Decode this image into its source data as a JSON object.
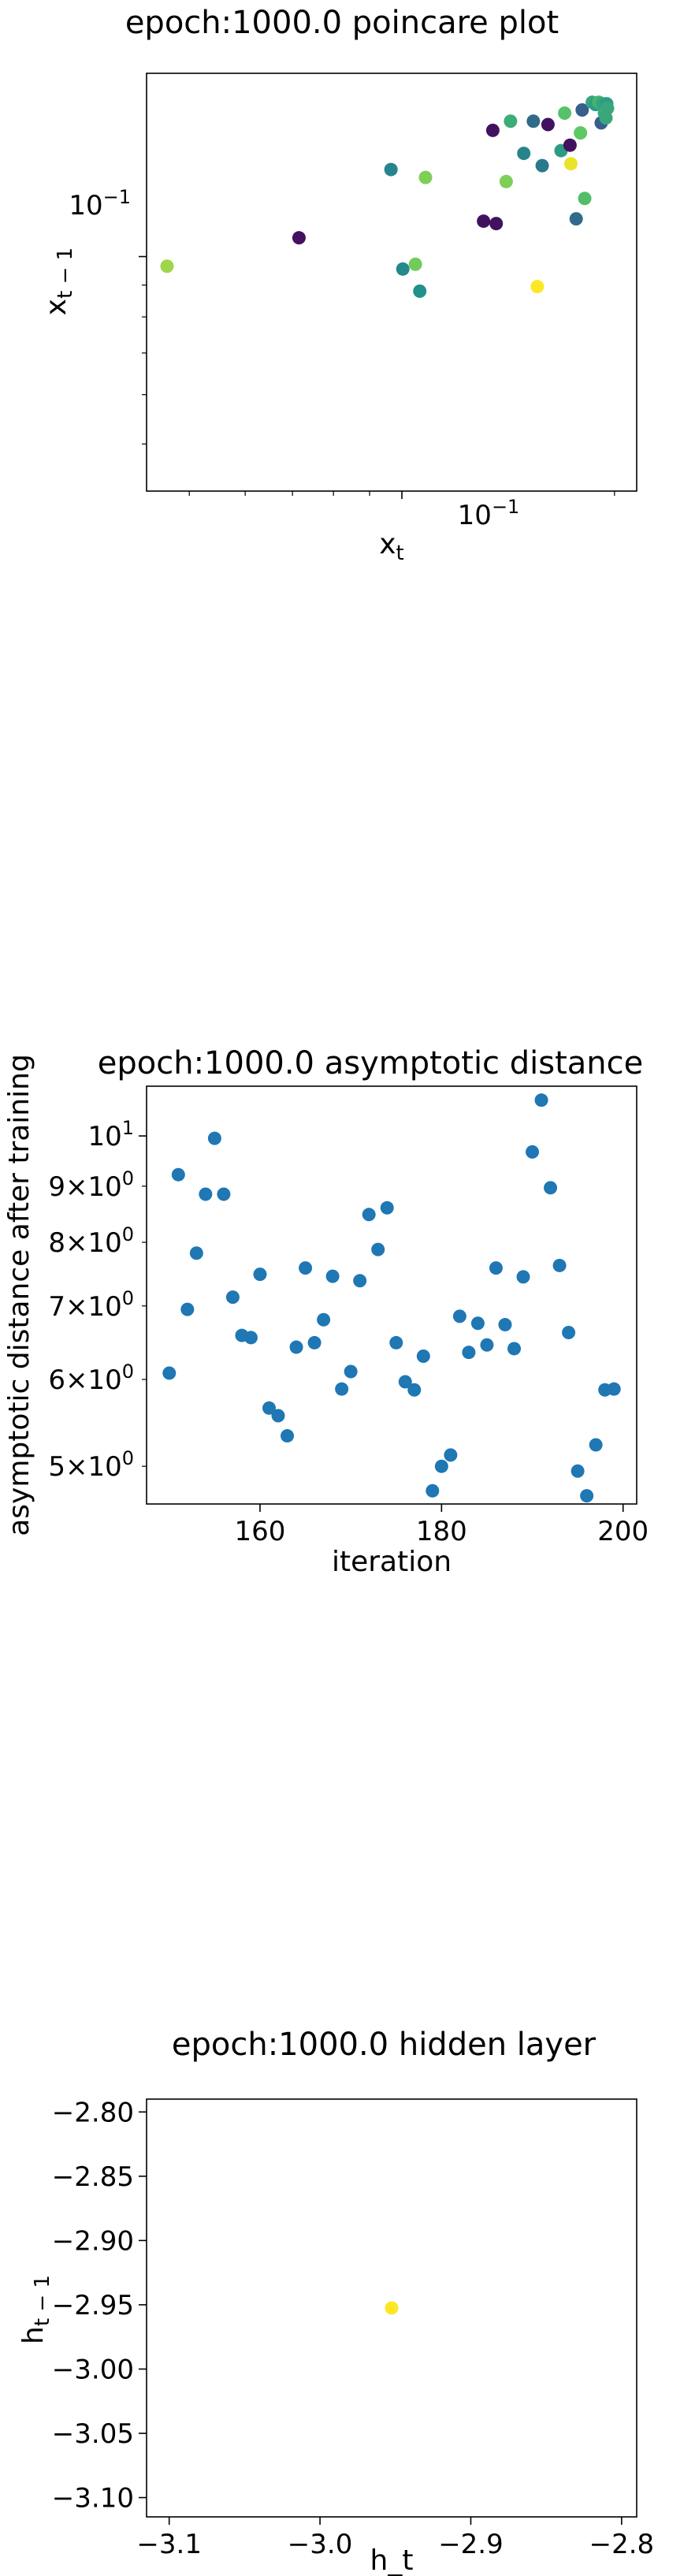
{
  "chart_data": [
    {
      "type": "scatter",
      "title": "epoch:1000.0 poincare plot",
      "xlabel": "x_t",
      "ylabel": "x_{t-1}",
      "xscale": "log",
      "yscale": "log",
      "xlim": [
        0.0435,
        0.215
      ],
      "ylim": [
        0.042,
        0.197
      ],
      "x_tick_labels": [
        "10^{-1}"
      ],
      "y_tick_labels": [
        "10^{-1}"
      ],
      "grid": false,
      "colormap": "viridis",
      "points": [
        {
          "x": 0.0465,
          "y": 0.0965,
          "c": 0.85
        },
        {
          "x": 0.0715,
          "y": 0.1072,
          "c": 0.05
        },
        {
          "x": 0.0965,
          "y": 0.138,
          "c": 0.45
        },
        {
          "x": 0.1003,
          "y": 0.0955,
          "c": 0.47
        },
        {
          "x": 0.1045,
          "y": 0.0972,
          "c": 0.78
        },
        {
          "x": 0.106,
          "y": 0.088,
          "c": 0.5
        },
        {
          "x": 0.108,
          "y": 0.134,
          "c": 0.8
        },
        {
          "x": 0.1305,
          "y": 0.114,
          "c": 0.05
        },
        {
          "x": 0.1345,
          "y": 0.1595,
          "c": 0.05
        },
        {
          "x": 0.136,
          "y": 0.113,
          "c": 0.05
        },
        {
          "x": 0.1405,
          "y": 0.132,
          "c": 0.8
        },
        {
          "x": 0.1425,
          "y": 0.165,
          "c": 0.62
        },
        {
          "x": 0.1488,
          "y": 0.1465,
          "c": 0.45
        },
        {
          "x": 0.1535,
          "y": 0.165,
          "c": 0.35
        },
        {
          "x": 0.1555,
          "y": 0.0895,
          "c": 1.0
        },
        {
          "x": 0.158,
          "y": 0.14,
          "c": 0.4
        },
        {
          "x": 0.161,
          "y": 0.163,
          "c": 0.05
        },
        {
          "x": 0.168,
          "y": 0.148,
          "c": 0.55
        },
        {
          "x": 0.17,
          "y": 0.17,
          "c": 0.72
        },
        {
          "x": 0.173,
          "y": 0.151,
          "c": 0.05
        },
        {
          "x": 0.1735,
          "y": 0.141,
          "c": 0.97
        },
        {
          "x": 0.1765,
          "y": 0.115,
          "c": 0.35
        },
        {
          "x": 0.179,
          "y": 0.158,
          "c": 0.75
        },
        {
          "x": 0.18,
          "y": 0.172,
          "c": 0.3
        },
        {
          "x": 0.1815,
          "y": 0.124,
          "c": 0.7
        },
        {
          "x": 0.186,
          "y": 0.177,
          "c": 0.6
        },
        {
          "x": 0.188,
          "y": 0.1755,
          "c": 0.55
        },
        {
          "x": 0.19,
          "y": 0.177,
          "c": 0.65
        },
        {
          "x": 0.1915,
          "y": 0.164,
          "c": 0.3
        },
        {
          "x": 0.1925,
          "y": 0.176,
          "c": 0.58
        },
        {
          "x": 0.1935,
          "y": 0.17,
          "c": 0.62
        },
        {
          "x": 0.1945,
          "y": 0.167,
          "c": 0.6
        },
        {
          "x": 0.195,
          "y": 0.176,
          "c": 0.55
        },
        {
          "x": 0.1955,
          "y": 0.173,
          "c": 0.6
        }
      ]
    },
    {
      "type": "scatter",
      "title": "epoch:1000.0 asymptotic distance",
      "xlabel": "iteration",
      "ylabel": "asymptotic distance after training",
      "xscale": "linear",
      "yscale": "log",
      "xlim": [
        147.5,
        201.5
      ],
      "ylim": [
        4.62,
        11.1
      ],
      "x_ticks": [
        160,
        180,
        200
      ],
      "y_tick_labels": [
        "5×10^0",
        "6×10^0",
        "7×10^0",
        "8×10^0",
        "9×10^0",
        "10^1"
      ],
      "grid": false,
      "color": "#1f77b4",
      "x": [
        150,
        151,
        152,
        153,
        154,
        155,
        156,
        157,
        158,
        159,
        160,
        161,
        162,
        163,
        164,
        165,
        166,
        167,
        168,
        169,
        170,
        171,
        172,
        173,
        174,
        175,
        176,
        177,
        178,
        179,
        180,
        181,
        182,
        183,
        184,
        185,
        186,
        187,
        188,
        189,
        190,
        191,
        192,
        193,
        194,
        195,
        196,
        197,
        198,
        199
      ],
      "y": [
        6.08,
        9.22,
        6.95,
        7.82,
        8.85,
        9.95,
        8.85,
        7.13,
        6.58,
        6.55,
        7.48,
        5.65,
        5.56,
        5.33,
        6.42,
        7.58,
        6.48,
        6.8,
        7.45,
        5.88,
        6.1,
        7.38,
        8.48,
        7.88,
        8.6,
        6.48,
        5.97,
        5.87,
        6.3,
        4.75,
        5.0,
        5.12,
        6.85,
        6.35,
        6.75,
        6.45,
        7.58,
        6.73,
        6.4,
        7.44,
        9.67,
        10.78,
        8.97,
        7.62,
        6.62,
        4.95,
        4.7,
        5.23,
        5.87,
        5.88
      ]
    },
    {
      "type": "scatter",
      "title": "epoch:1000.0 hidden layer",
      "xlabel": "h_t",
      "ylabel": "h_{t-1}",
      "xscale": "linear",
      "yscale": "linear",
      "xlim": [
        -3.115,
        -2.79
      ],
      "ylim": [
        -3.115,
        -2.79
      ],
      "x_ticks": [
        "−3.1",
        "−3.0",
        "−2.9",
        "−2.8"
      ],
      "y_ticks": [
        "−2.80",
        "−2.85",
        "−2.90",
        "−2.95",
        "−3.00",
        "−3.05",
        "−3.10"
      ],
      "grid": false,
      "color": "#fde725",
      "x": [
        -2.9525
      ],
      "y": [
        -2.9525
      ]
    }
  ]
}
